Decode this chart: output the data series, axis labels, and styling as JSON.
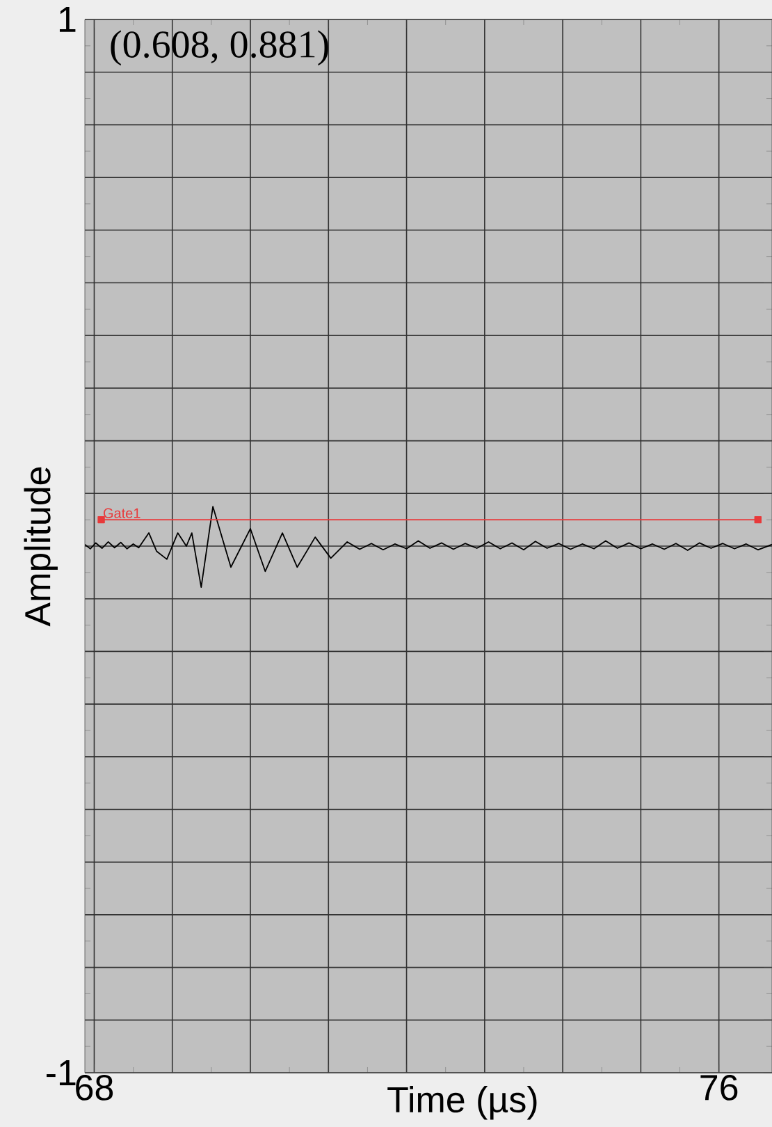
{
  "chart_data": {
    "type": "line",
    "xlabel": "Time (µs)",
    "ylabel": "Amplitude",
    "annotations": [
      "(0.608, 0.881)"
    ],
    "xlim": [
      67.88,
      76.68
    ],
    "ylim": [
      -1,
      1
    ],
    "xticks": [
      68,
      {
        "value": 69,
        "label": null
      },
      {
        "value": 70,
        "label": null
      },
      {
        "value": 71,
        "label": null
      },
      {
        "value": 72,
        "label": null
      },
      {
        "value": 73,
        "label": null
      },
      {
        "value": 74,
        "label": null
      },
      {
        "value": 75,
        "label": null
      },
      76
    ],
    "yticks": [
      -1,
      {
        "value": -0.9,
        "label": null
      },
      {
        "value": -0.8,
        "label": null
      },
      {
        "value": -0.7,
        "label": null
      },
      {
        "value": -0.6,
        "label": null
      },
      {
        "value": -0.5,
        "label": null
      },
      {
        "value": -0.4,
        "label": null
      },
      {
        "value": -0.3,
        "label": null
      },
      {
        "value": -0.2,
        "label": null
      },
      {
        "value": -0.1,
        "label": null
      },
      {
        "value": 0,
        "label": null
      },
      {
        "value": 0.1,
        "label": null
      },
      {
        "value": 0.2,
        "label": null
      },
      {
        "value": 0.3,
        "label": null
      },
      {
        "value": 0.4,
        "label": null
      },
      {
        "value": 0.5,
        "label": null
      },
      {
        "value": 0.6,
        "label": null
      },
      {
        "value": 0.7,
        "label": null
      },
      {
        "value": 0.8,
        "label": null
      },
      {
        "value": 0.9,
        "label": null
      },
      1
    ],
    "grid": true,
    "series": [
      {
        "color": "#000000",
        "marker": "none",
        "x": [
          67.88,
          67.95,
          68.02,
          68.1,
          68.18,
          68.26,
          68.34,
          68.42,
          68.5,
          68.57,
          68.7,
          68.8,
          68.93,
          69.07,
          69.18,
          69.25,
          69.37,
          69.52,
          69.75,
          70.0,
          70.19,
          70.41,
          70.6,
          70.83,
          71.03,
          71.24,
          71.4,
          71.55,
          71.7,
          71.85,
          72.0,
          72.15,
          72.3,
          72.45,
          72.6,
          72.75,
          72.9,
          73.05,
          73.2,
          73.35,
          73.5,
          73.65,
          73.8,
          73.95,
          74.1,
          74.25,
          74.4,
          74.55,
          74.7,
          74.85,
          75.0,
          75.15,
          75.3,
          75.45,
          75.6,
          75.75,
          75.9,
          76.05,
          76.2,
          76.35,
          76.5,
          76.68
        ],
        "values": [
          0.003,
          -0.005,
          0.006,
          -0.004,
          0.008,
          -0.003,
          0.007,
          -0.005,
          0.004,
          -0.003,
          0.025,
          -0.01,
          -0.025,
          0.025,
          0.0,
          0.025,
          -0.078,
          0.075,
          -0.04,
          0.033,
          -0.048,
          0.025,
          -0.04,
          0.017,
          -0.023,
          0.008,
          -0.006,
          0.005,
          -0.007,
          0.004,
          -0.005,
          0.01,
          -0.004,
          0.006,
          -0.006,
          0.005,
          -0.004,
          0.008,
          -0.005,
          0.006,
          -0.007,
          0.009,
          -0.004,
          0.005,
          -0.006,
          0.004,
          -0.005,
          0.01,
          -0.004,
          0.006,
          -0.005,
          0.004,
          -0.006,
          0.005,
          -0.008,
          0.006,
          -0.004,
          0.005,
          -0.005,
          0.004,
          -0.007,
          0.003
        ]
      },
      {
        "name": "Gate1",
        "color": "#e8393a",
        "marker": "square",
        "x": [
          68.09,
          76.5
        ],
        "values": [
          0.05,
          0.05
        ]
      }
    ]
  }
}
